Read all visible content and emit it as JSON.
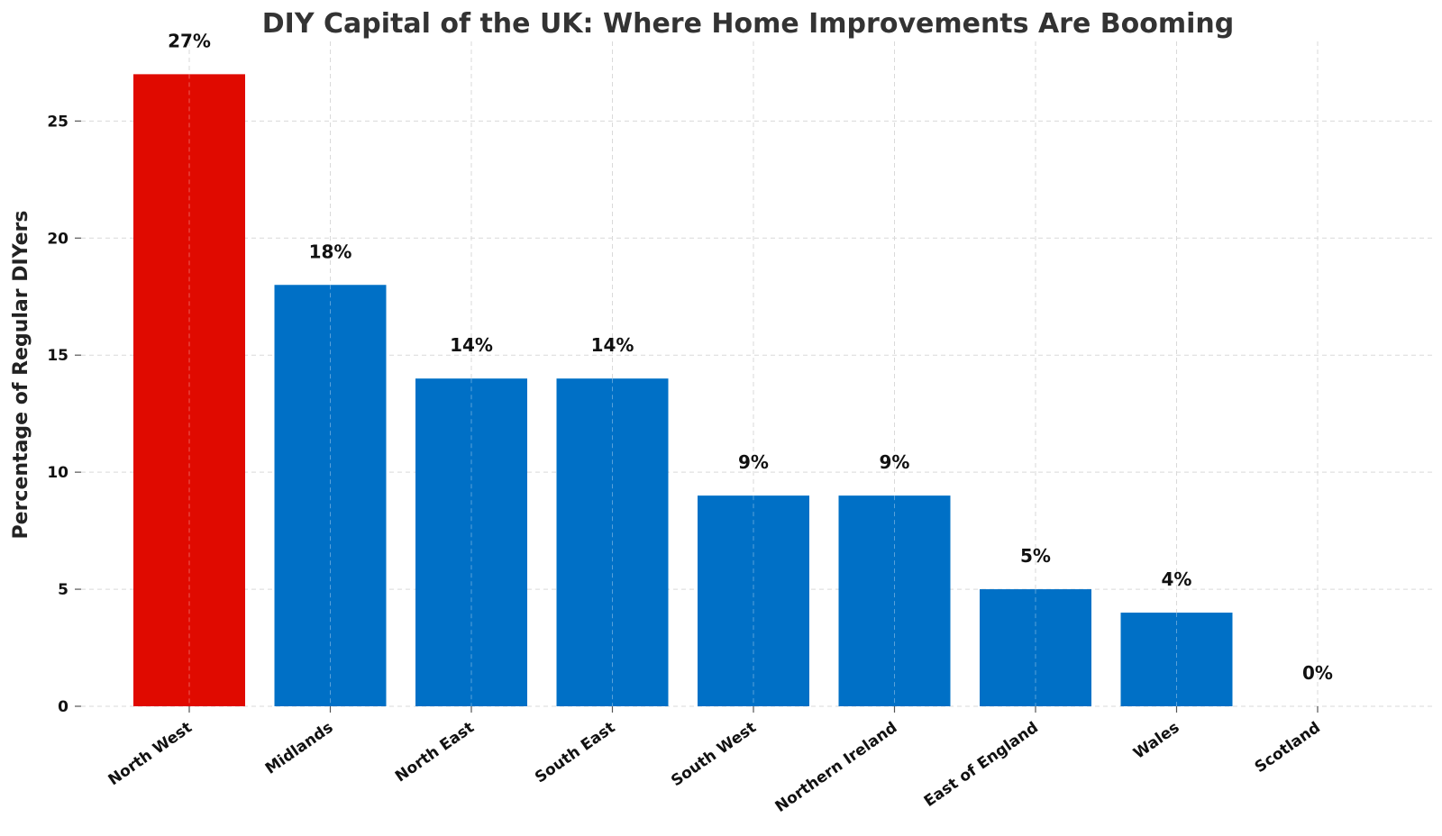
{
  "chart_data": {
    "type": "bar",
    "title": "DIY Capital of the UK: Where Home Improvements Are Booming",
    "xlabel": "",
    "ylabel": "Percentage of Regular DIYers",
    "categories": [
      "North West",
      "Midlands",
      "North East",
      "South East",
      "South West",
      "Northern Ireland",
      "East of England",
      "Wales",
      "Scotland"
    ],
    "values": [
      27,
      18,
      14,
      14,
      9,
      9,
      5,
      4,
      0
    ],
    "data_labels": [
      "27%",
      "18%",
      "14%",
      "14%",
      "9%",
      "9%",
      "5%",
      "4%",
      "0%"
    ],
    "highlight_index": 0,
    "colors": {
      "bar": "#0070c6",
      "highlight": "#e00a00",
      "grid": "#d9d9d9",
      "axis_tick": "#555555"
    },
    "ylim": [
      0,
      28.4
    ],
    "yticks": [
      0,
      5,
      10,
      15,
      20,
      25
    ],
    "grid": true
  }
}
